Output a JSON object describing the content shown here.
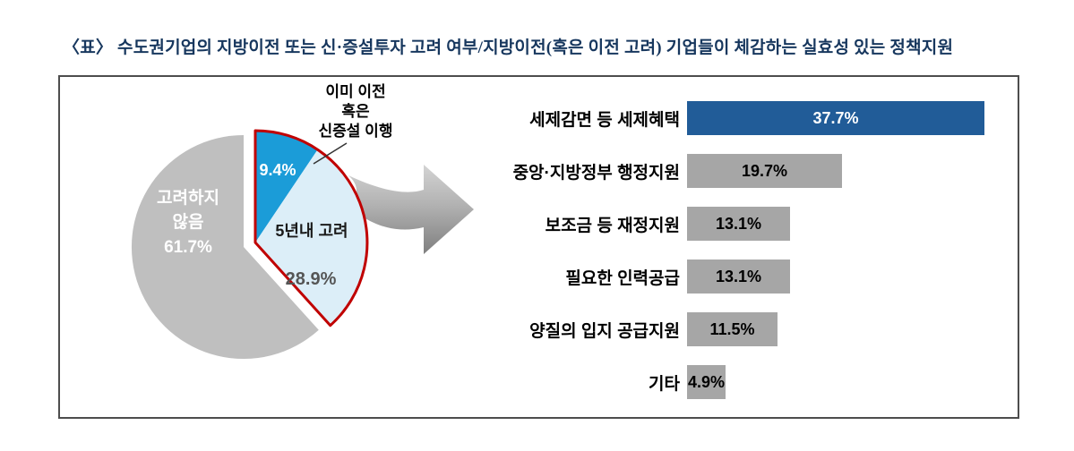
{
  "title": "〈표〉 수도권기업의 지방이전 또는 신·증설투자 고려 여부/지방이전(혹은 이전 고려) 기업들이 체감하는 실효성 있는 정책지원",
  "pie_callout": {
    "line1": "이미 이전",
    "line2": "혹은",
    "line3": "신증설 이행"
  },
  "pie_labels": {
    "gray_line1": "고려하지",
    "gray_line2": "않음",
    "gray_value": "61.7%",
    "blue_value": "9.4%",
    "light_label": "5년내 고려",
    "light_value": "28.9%"
  },
  "chart_data": [
    {
      "type": "pie",
      "start_angle_deg": -90,
      "slices": [
        {
          "label": "이미 이전 혹은 신증설 이행",
          "value": 9.4,
          "color": "#1B9CD8",
          "exploded": true
        },
        {
          "label": "5년내 고려",
          "value": 28.9,
          "color": "#DCEEF8",
          "exploded": true
        },
        {
          "label": "고려하지 않음",
          "value": 61.7,
          "color": "#BFBFBF",
          "exploded": false
        }
      ],
      "highlight_outline_color": "#C00000"
    },
    {
      "type": "bar",
      "orientation": "horizontal",
      "categories": [
        "세제감면 등 세제혜택",
        "중앙·지방정부 행정지원",
        "보조금 등 재정지원",
        "필요한 인력공급",
        "양질의 입지 공급지원",
        "기타"
      ],
      "values": [
        37.7,
        19.7,
        13.1,
        13.1,
        11.5,
        4.9
      ],
      "value_labels": [
        "37.7%",
        "19.7%",
        "13.1%",
        "13.1%",
        "11.5%",
        "4.9%"
      ],
      "bar_colors": [
        "#215C98",
        "#A6A6A6",
        "#A6A6A6",
        "#A6A6A6",
        "#A6A6A6",
        "#A6A6A6"
      ],
      "value_label_colors": [
        "#FFFFFF",
        "#000000",
        "#000000",
        "#000000",
        "#000000",
        "#000000"
      ],
      "xlim": [
        0,
        40
      ]
    }
  ]
}
